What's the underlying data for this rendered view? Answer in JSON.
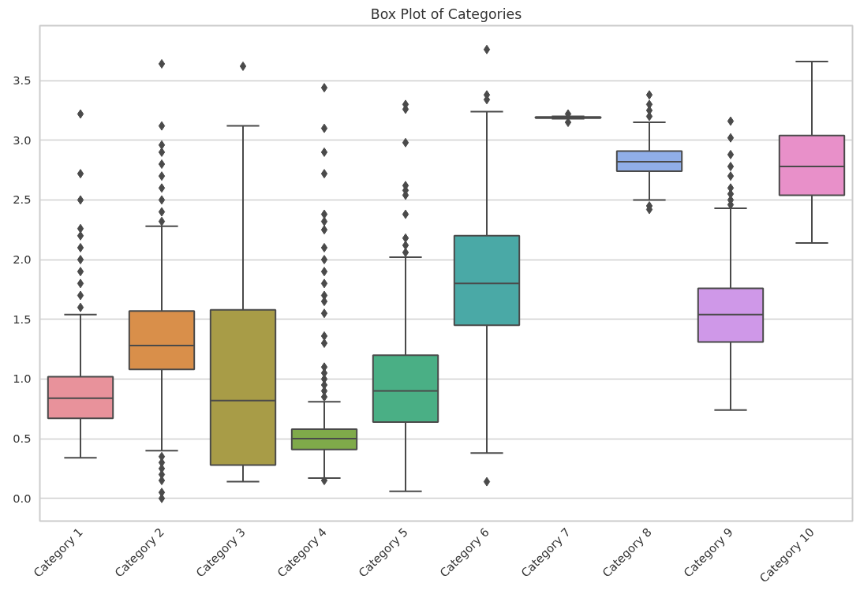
{
  "chart_data": {
    "type": "box",
    "title": "Box Plot of Categories",
    "categories": [
      "Category 1",
      "Category 2",
      "Category 3",
      "Category 4",
      "Category 5",
      "Category 6",
      "Category 7",
      "Category 8",
      "Category 9",
      "Category 10"
    ],
    "colors": [
      "#e8929b",
      "#d98f4a",
      "#a89c47",
      "#7faa4a",
      "#4aaf85",
      "#4aa9a6",
      "#4ca7c9",
      "#90aee8",
      "#cf98e8",
      "#e890c9"
    ],
    "boxes": [
      {
        "low": 0.34,
        "q1": 0.67,
        "median": 0.84,
        "q3": 1.02,
        "high": 1.54,
        "outliers": [
          3.22,
          2.72,
          2.5,
          2.26,
          2.2,
          2.1,
          2.0,
          1.9,
          1.8,
          1.7,
          1.6
        ]
      },
      {
        "low": 0.4,
        "q1": 1.08,
        "median": 1.28,
        "q3": 1.57,
        "high": 2.28,
        "outliers": [
          3.64,
          3.12,
          2.96,
          2.9,
          2.8,
          2.7,
          2.6,
          2.5,
          2.4,
          2.32,
          0.35,
          0.3,
          0.25,
          0.2,
          0.15,
          0.05,
          0.0
        ]
      },
      {
        "low": 0.14,
        "q1": 0.28,
        "median": 0.82,
        "q3": 1.58,
        "high": 3.12,
        "outliers": [
          3.62
        ]
      },
      {
        "low": 0.17,
        "q1": 0.41,
        "median": 0.5,
        "q3": 0.58,
        "high": 0.81,
        "outliers": [
          3.44,
          3.1,
          2.9,
          2.72,
          2.38,
          2.32,
          2.25,
          2.1,
          2.0,
          1.9,
          1.8,
          1.7,
          1.65,
          1.55,
          1.36,
          1.3,
          1.1,
          1.05,
          1.0,
          0.95,
          0.9,
          0.85,
          0.15
        ]
      },
      {
        "low": 0.06,
        "q1": 0.64,
        "median": 0.9,
        "q3": 1.2,
        "high": 2.02,
        "outliers": [
          3.3,
          3.26,
          2.98,
          2.62,
          2.58,
          2.54,
          2.38,
          2.18,
          2.12,
          2.06
        ]
      },
      {
        "low": 0.38,
        "q1": 1.45,
        "median": 1.8,
        "q3": 2.2,
        "high": 3.24,
        "outliers": [
          3.76,
          3.38,
          3.34,
          0.14
        ]
      },
      {
        "low": 3.18,
        "q1": 3.185,
        "median": 3.19,
        "q3": 3.195,
        "high": 3.2,
        "outliers": [
          3.15,
          3.22
        ]
      },
      {
        "low": 2.5,
        "q1": 2.74,
        "median": 2.82,
        "q3": 2.91,
        "high": 3.15,
        "outliers": [
          3.38,
          3.3,
          3.25,
          3.2,
          2.45,
          2.42
        ]
      },
      {
        "low": 0.74,
        "q1": 1.31,
        "median": 1.54,
        "q3": 1.76,
        "high": 2.43,
        "outliers": [
          3.16,
          3.02,
          2.88,
          2.78,
          2.7,
          2.6,
          2.55,
          2.5,
          2.46
        ]
      },
      {
        "low": 2.14,
        "q1": 2.54,
        "median": 2.78,
        "q3": 3.04,
        "high": 3.66
      }
    ],
    "ylim": [
      -0.19,
      3.96
    ],
    "yticks": [
      {
        "value": 0,
        "label": "0.0"
      },
      0.5,
      {
        "value": 1,
        "label": "1.0"
      },
      1.5,
      {
        "value": 2,
        "label": "2.0"
      },
      2.5,
      {
        "value": 3,
        "label": "3.0"
      },
      3.5
    ],
    "grid": "y",
    "marker": "diamond"
  }
}
